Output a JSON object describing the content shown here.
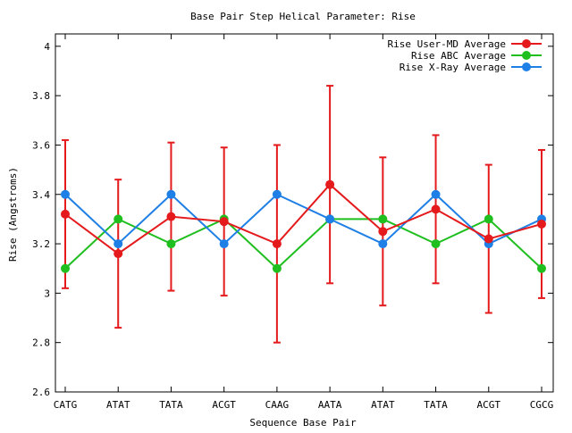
{
  "chart_data": {
    "type": "line",
    "title": "Base Pair Step Helical Parameter: Rise",
    "xlabel": "Sequence Base Pair",
    "ylabel": "Rise (Angstroms)",
    "categories": [
      "CATG",
      "ATAT",
      "TATA",
      "ACGT",
      "CAAG",
      "AATA",
      "ATAT",
      "TATA",
      "ACGT",
      "CGCG"
    ],
    "ylim": [
      2.6,
      4.05
    ],
    "yticks": [
      2.6,
      2.8,
      3.0,
      3.2,
      3.4,
      3.6,
      3.8,
      4.0
    ],
    "ytick_labels": [
      "2.6",
      "2.8",
      "3",
      "3.2",
      "3.4",
      "3.6",
      "3.8",
      "4"
    ],
    "legend_position": "top-right",
    "grid": false,
    "series": [
      {
        "name": "Rise User-MD Average",
        "color": "#e41a1c",
        "values": [
          3.32,
          3.16,
          3.31,
          3.29,
          3.2,
          3.44,
          3.25,
          3.34,
          3.22,
          3.28
        ],
        "error_low": [
          3.02,
          2.86,
          3.01,
          2.99,
          2.8,
          3.04,
          2.95,
          3.04,
          2.92,
          2.98
        ],
        "error_high": [
          3.62,
          3.46,
          3.61,
          3.59,
          3.6,
          3.84,
          3.55,
          3.64,
          3.52,
          3.58
        ]
      },
      {
        "name": "Rise ABC Average",
        "color": "#1fbf1f",
        "values": [
          3.1,
          3.3,
          3.2,
          3.3,
          3.1,
          3.3,
          3.3,
          3.2,
          3.3,
          3.1
        ]
      },
      {
        "name": "Rise X-Ray Average",
        "color": "#1e7fe6",
        "values": [
          3.4,
          3.2,
          3.4,
          3.2,
          3.4,
          3.3,
          3.2,
          3.4,
          3.2,
          3.3
        ]
      }
    ]
  }
}
